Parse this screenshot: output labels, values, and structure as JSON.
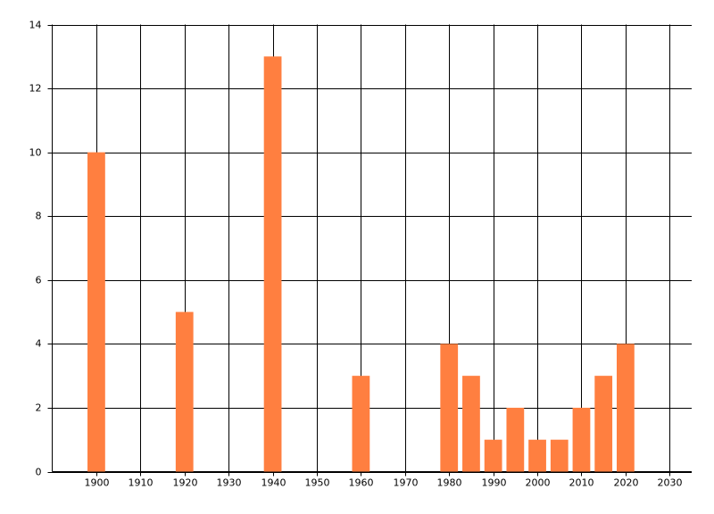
{
  "chart_data": {
    "type": "bar",
    "x": [
      1900,
      1920,
      1940,
      1960,
      1980,
      1985,
      1990,
      1995,
      2000,
      2005,
      2010,
      2015,
      2020
    ],
    "values": [
      10,
      5,
      13,
      3,
      4,
      3,
      1,
      2,
      1,
      1,
      2,
      3,
      4
    ],
    "color": "#ff7f40",
    "xlim": [
      1890,
      2035
    ],
    "xticks": [
      1900,
      1910,
      1920,
      1930,
      1940,
      1950,
      1960,
      1970,
      1980,
      1990,
      2000,
      2010,
      2020,
      2030
    ],
    "ylim": [
      0,
      14
    ],
    "yticks": [
      0,
      2,
      4,
      6,
      8,
      10,
      12,
      14
    ],
    "grid": true
  }
}
